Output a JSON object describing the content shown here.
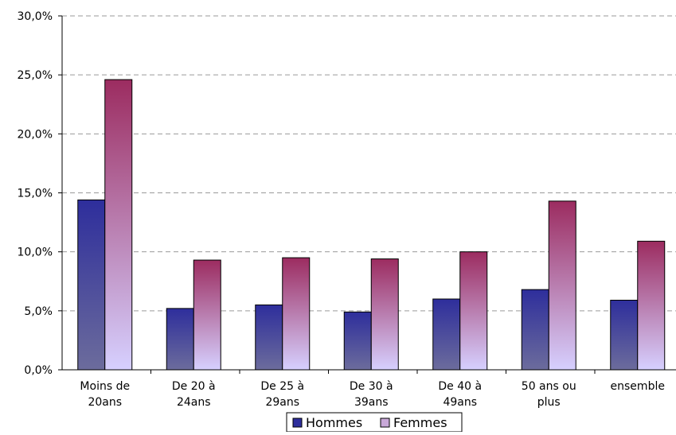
{
  "chart_data": {
    "type": "bar",
    "title": "",
    "xlabel": "",
    "ylabel": "",
    "categories": [
      [
        "Moins de",
        "20ans"
      ],
      [
        "De 20 à",
        "24ans"
      ],
      [
        "De 25 à",
        "29ans"
      ],
      [
        "De 30 à",
        "39ans"
      ],
      [
        "De 40 à",
        "49ans"
      ],
      [
        "50 ans ou",
        "plus"
      ],
      [
        "ensemble"
      ]
    ],
    "series": [
      {
        "name": "Hommes",
        "values": [
          14.4,
          5.2,
          5.5,
          4.9,
          6.0,
          6.8,
          5.9
        ],
        "color_top": "#2e2e9c",
        "color_bottom": "#6c6c9c"
      },
      {
        "name": "Femmes",
        "values": [
          24.6,
          9.3,
          9.5,
          9.4,
          10.0,
          14.3,
          10.9
        ],
        "color_top": "#9c2c60",
        "color_bottom": "#d6d0ff"
      }
    ],
    "ylim": [
      0,
      30
    ],
    "y_ticks": [
      "0,0%",
      "5,0%",
      "10,0%",
      "15,0%",
      "20,0%",
      "25,0%",
      "30,0%"
    ],
    "grid": true,
    "legend_position": "bottom"
  }
}
